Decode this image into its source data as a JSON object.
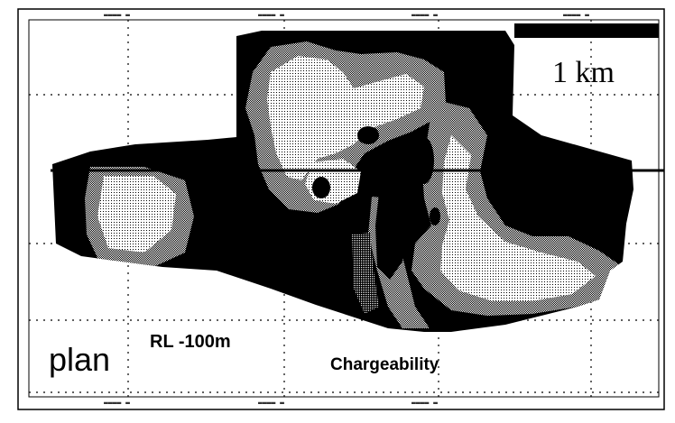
{
  "map": {
    "scale_bar_label": "1 km",
    "view_label": "plan",
    "level_label": "RL -100m",
    "property_label": "Chargeability",
    "colors": {
      "background": "#ffffff",
      "high": "#000000",
      "mid": "#9a9a9a",
      "low": "#e6e6e6",
      "grid": "#000000"
    }
  }
}
